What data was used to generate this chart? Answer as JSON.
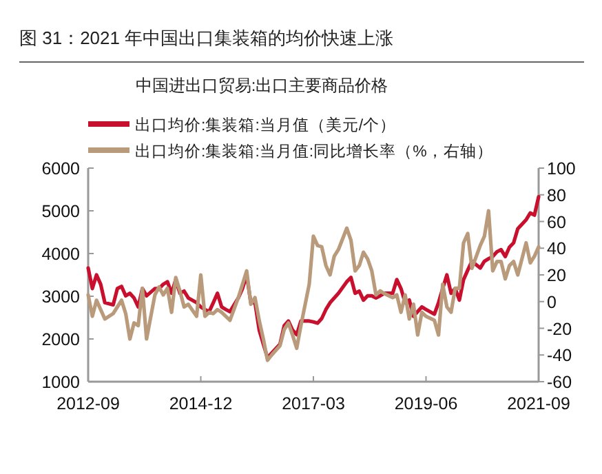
{
  "chart_data": {
    "type": "line",
    "title": "图 31：2021 年中国出口集装箱的均价快速上涨",
    "subtitle": "中国进出口贸易:出口主要商品价格",
    "x": [
      "2012-09",
      "2012-10",
      "2012-11",
      "2012-12",
      "2013-01",
      "2013-03",
      "2013-04",
      "2013-05",
      "2013-06",
      "2013-07",
      "2013-08",
      "2013-09",
      "2013-10",
      "2013-11",
      "2014-01",
      "2014-02",
      "2014-03",
      "2014-04",
      "2014-05",
      "2014-06",
      "2014-07",
      "2014-08",
      "2014-09",
      "2014-11",
      "2014-12",
      "2015-01",
      "2015-02",
      "2015-03",
      "2015-04",
      "2015-05",
      "2015-06",
      "2015-07",
      "2015-09",
      "2015-10",
      "2015-11",
      "2015-12",
      "2016-01",
      "2016-02",
      "2016-03",
      "2016-04",
      "2016-05",
      "2016-07",
      "2016-08",
      "2016-09",
      "2016-10",
      "2016-11",
      "2016-12",
      "2017-02",
      "2017-03",
      "2017-04",
      "2017-05",
      "2017-06",
      "2017-07",
      "2017-08",
      "2017-09",
      "2017-11",
      "2017-12",
      "2018-01",
      "2018-02",
      "2018-03",
      "2018-04",
      "2018-05",
      "2018-06",
      "2018-07",
      "2018-08",
      "2018-10",
      "2018-11",
      "2018-12",
      "2019-01",
      "2019-02",
      "2019-03",
      "2019-04",
      "2019-05",
      "2019-06",
      "2019-08",
      "2019-09",
      "2019-10",
      "2019-11",
      "2019-12",
      "2020-01",
      "2020-02",
      "2020-03",
      "2020-04",
      "2020-05",
      "2020-07",
      "2020-08",
      "2020-09",
      "2020-10",
      "2020-11",
      "2020-12",
      "2021-01",
      "2021-02",
      "2021-03",
      "2021-04",
      "2021-06",
      "2021-07",
      "2021-08",
      "2021-09"
    ],
    "series": [
      {
        "name": "出口均价:集装箱:当月值（美元/个）",
        "color": "#c8102e",
        "values": [
          3660,
          3180,
          3500,
          3280,
          2850,
          2800,
          3180,
          3230,
          3010,
          3070,
          2960,
          2750,
          3180,
          3010,
          3180,
          3180,
          3280,
          3340,
          3070,
          3390,
          3070,
          3120,
          2960,
          2850,
          2750,
          2690,
          2640,
          2850,
          3070,
          2750,
          2690,
          2640,
          2960,
          3180,
          3500,
          2850,
          2850,
          2210,
          1880,
          1560,
          1670,
          1880,
          2310,
          2420,
          2210,
          2100,
          2420,
          2420,
          2400,
          2370,
          2480,
          2690,
          2850,
          2960,
          3070,
          3340,
          3440,
          3070,
          3120,
          2910,
          3010,
          3010,
          2960,
          3010,
          3070,
          3070,
          3390,
          3180,
          2850,
          2910,
          2530,
          2640,
          2750,
          2690,
          2580,
          2850,
          3180,
          3500,
          3070,
          3180,
          2910,
          3390,
          3610,
          3820,
          3660,
          3820,
          3880,
          3930,
          4040,
          4090,
          3930,
          4150,
          4250,
          4580,
          4790,
          4950,
          4900,
          5330
        ]
      },
      {
        "name": "出口均价:集装箱:当月值:同比增长率（%，右轴）",
        "color": "#b99a7a",
        "axis": "y2",
        "values": [
          5,
          -11,
          1,
          -6,
          -13,
          -9,
          -4,
          1,
          -9,
          -28,
          -16,
          -18,
          10,
          -28,
          5,
          11,
          5,
          10,
          -8,
          18,
          8,
          -4,
          -2,
          -11,
          20,
          -11,
          -8,
          -9,
          -6,
          -8,
          -11,
          -14,
          3,
          13,
          23,
          -2,
          3,
          -14,
          -28,
          -44,
          -40,
          -33,
          -21,
          -16,
          -25,
          -35,
          -18,
          13,
          49,
          42,
          41,
          27,
          20,
          34,
          39,
          55,
          46,
          23,
          27,
          37,
          32,
          23,
          5,
          8,
          6,
          3,
          5,
          -8,
          5,
          -13,
          -2,
          -25,
          -8,
          -11,
          -14,
          -25,
          13,
          -4,
          -8,
          10,
          10,
          44,
          51,
          25,
          42,
          49,
          68,
          23,
          30,
          30,
          17,
          27,
          30,
          20,
          44,
          29,
          34,
          41
        ]
      }
    ],
    "xlim": [
      "2012-09",
      "2021-09"
    ],
    "xticks": [
      "2012-09",
      "2014-12",
      "2017-03",
      "2019-06",
      "2021-09"
    ],
    "ylim": [
      1000,
      6000
    ],
    "yticks": [
      1000,
      2000,
      3000,
      4000,
      5000,
      6000
    ],
    "y2lim": [
      -60,
      100
    ],
    "y2ticks": [
      -60,
      -40,
      -20,
      0,
      20,
      40,
      60,
      80,
      100
    ],
    "legend": "top",
    "grid": false,
    "marker": "none",
    "line_style": "solid"
  }
}
